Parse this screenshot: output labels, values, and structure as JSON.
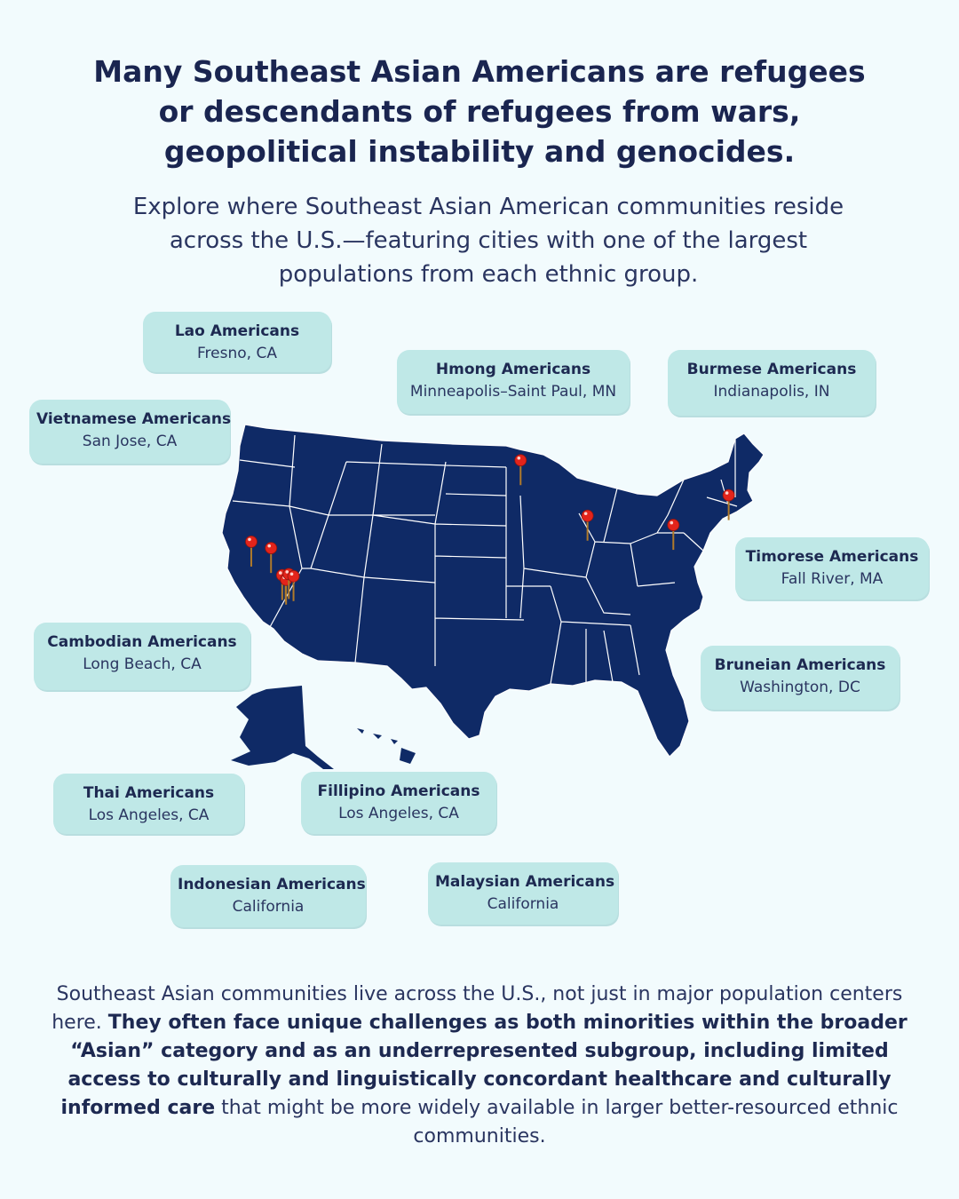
{
  "headline": "Many Southeast Asian Americans are refugees or descendants of refugees from wars, geopolitical instability and genocides.",
  "subheading": "Explore where Southeast Asian American communities reside across the U.S.—featuring cities with one of the largest populations from each ethnic group.",
  "map": {
    "map_fill_color": "#0f2a66",
    "state_border_color": "#ffffff",
    "pin_color": "#e3241b",
    "pins": [
      {
        "id": "san-jose",
        "lon": -121.89,
        "lat": 37.34
      },
      {
        "id": "fresno",
        "lon": -119.79,
        "lat": 36.74
      },
      {
        "id": "los-angeles-1",
        "lon": -118.24,
        "lat": 34.05
      },
      {
        "id": "los-angeles-2",
        "lon": -118.6,
        "lat": 34.2
      },
      {
        "id": "long-beach",
        "lon": -118.19,
        "lat": 33.77
      },
      {
        "id": "california-1",
        "lon": -117.9,
        "lat": 34.3
      },
      {
        "id": "california-2",
        "lon": -117.4,
        "lat": 34.1
      },
      {
        "id": "minneapolis-saint-paul",
        "lon": -93.27,
        "lat": 44.98
      },
      {
        "id": "indianapolis",
        "lon": -86.16,
        "lat": 39.77
      },
      {
        "id": "washington-dc",
        "lon": -77.04,
        "lat": 38.91
      },
      {
        "id": "fall-river",
        "lon": -71.16,
        "lat": 41.7
      }
    ]
  },
  "groups": [
    {
      "name": "Lao Americans",
      "location": "Fresno, CA"
    },
    {
      "name": "Hmong Americans",
      "location": "Minneapolis–Saint Paul, MN"
    },
    {
      "name": "Burmese Americans",
      "location": "Indianapolis, IN"
    },
    {
      "name": "Vietnamese Americans",
      "location": "San Jose, CA"
    },
    {
      "name": "Timorese Americans",
      "location": "Fall River, MA"
    },
    {
      "name": "Cambodian Americans",
      "location": "Long Beach, CA"
    },
    {
      "name": "Bruneian Americans",
      "location": "Washington, DC"
    },
    {
      "name": "Thai Americans",
      "location": "Los Angeles, CA"
    },
    {
      "name": "Fillipino Americans",
      "location": "Los Angeles, CA"
    },
    {
      "name": "Indonesian Americans",
      "location": "California"
    },
    {
      "name": "Malaysian Americans",
      "location": "California"
    }
  ],
  "footer": {
    "part1": "Southeast Asian communities live across the U.S., not just in major population centers here. ",
    "bold": "They often face unique challenges as both minorities within the broader “Asian” category and as an underrepresented subgroup, including limited access to culturally and linguistically concordant healthcare and culturally informed care",
    "part2": " that might be more widely available in larger better-resourced ethnic communities."
  }
}
